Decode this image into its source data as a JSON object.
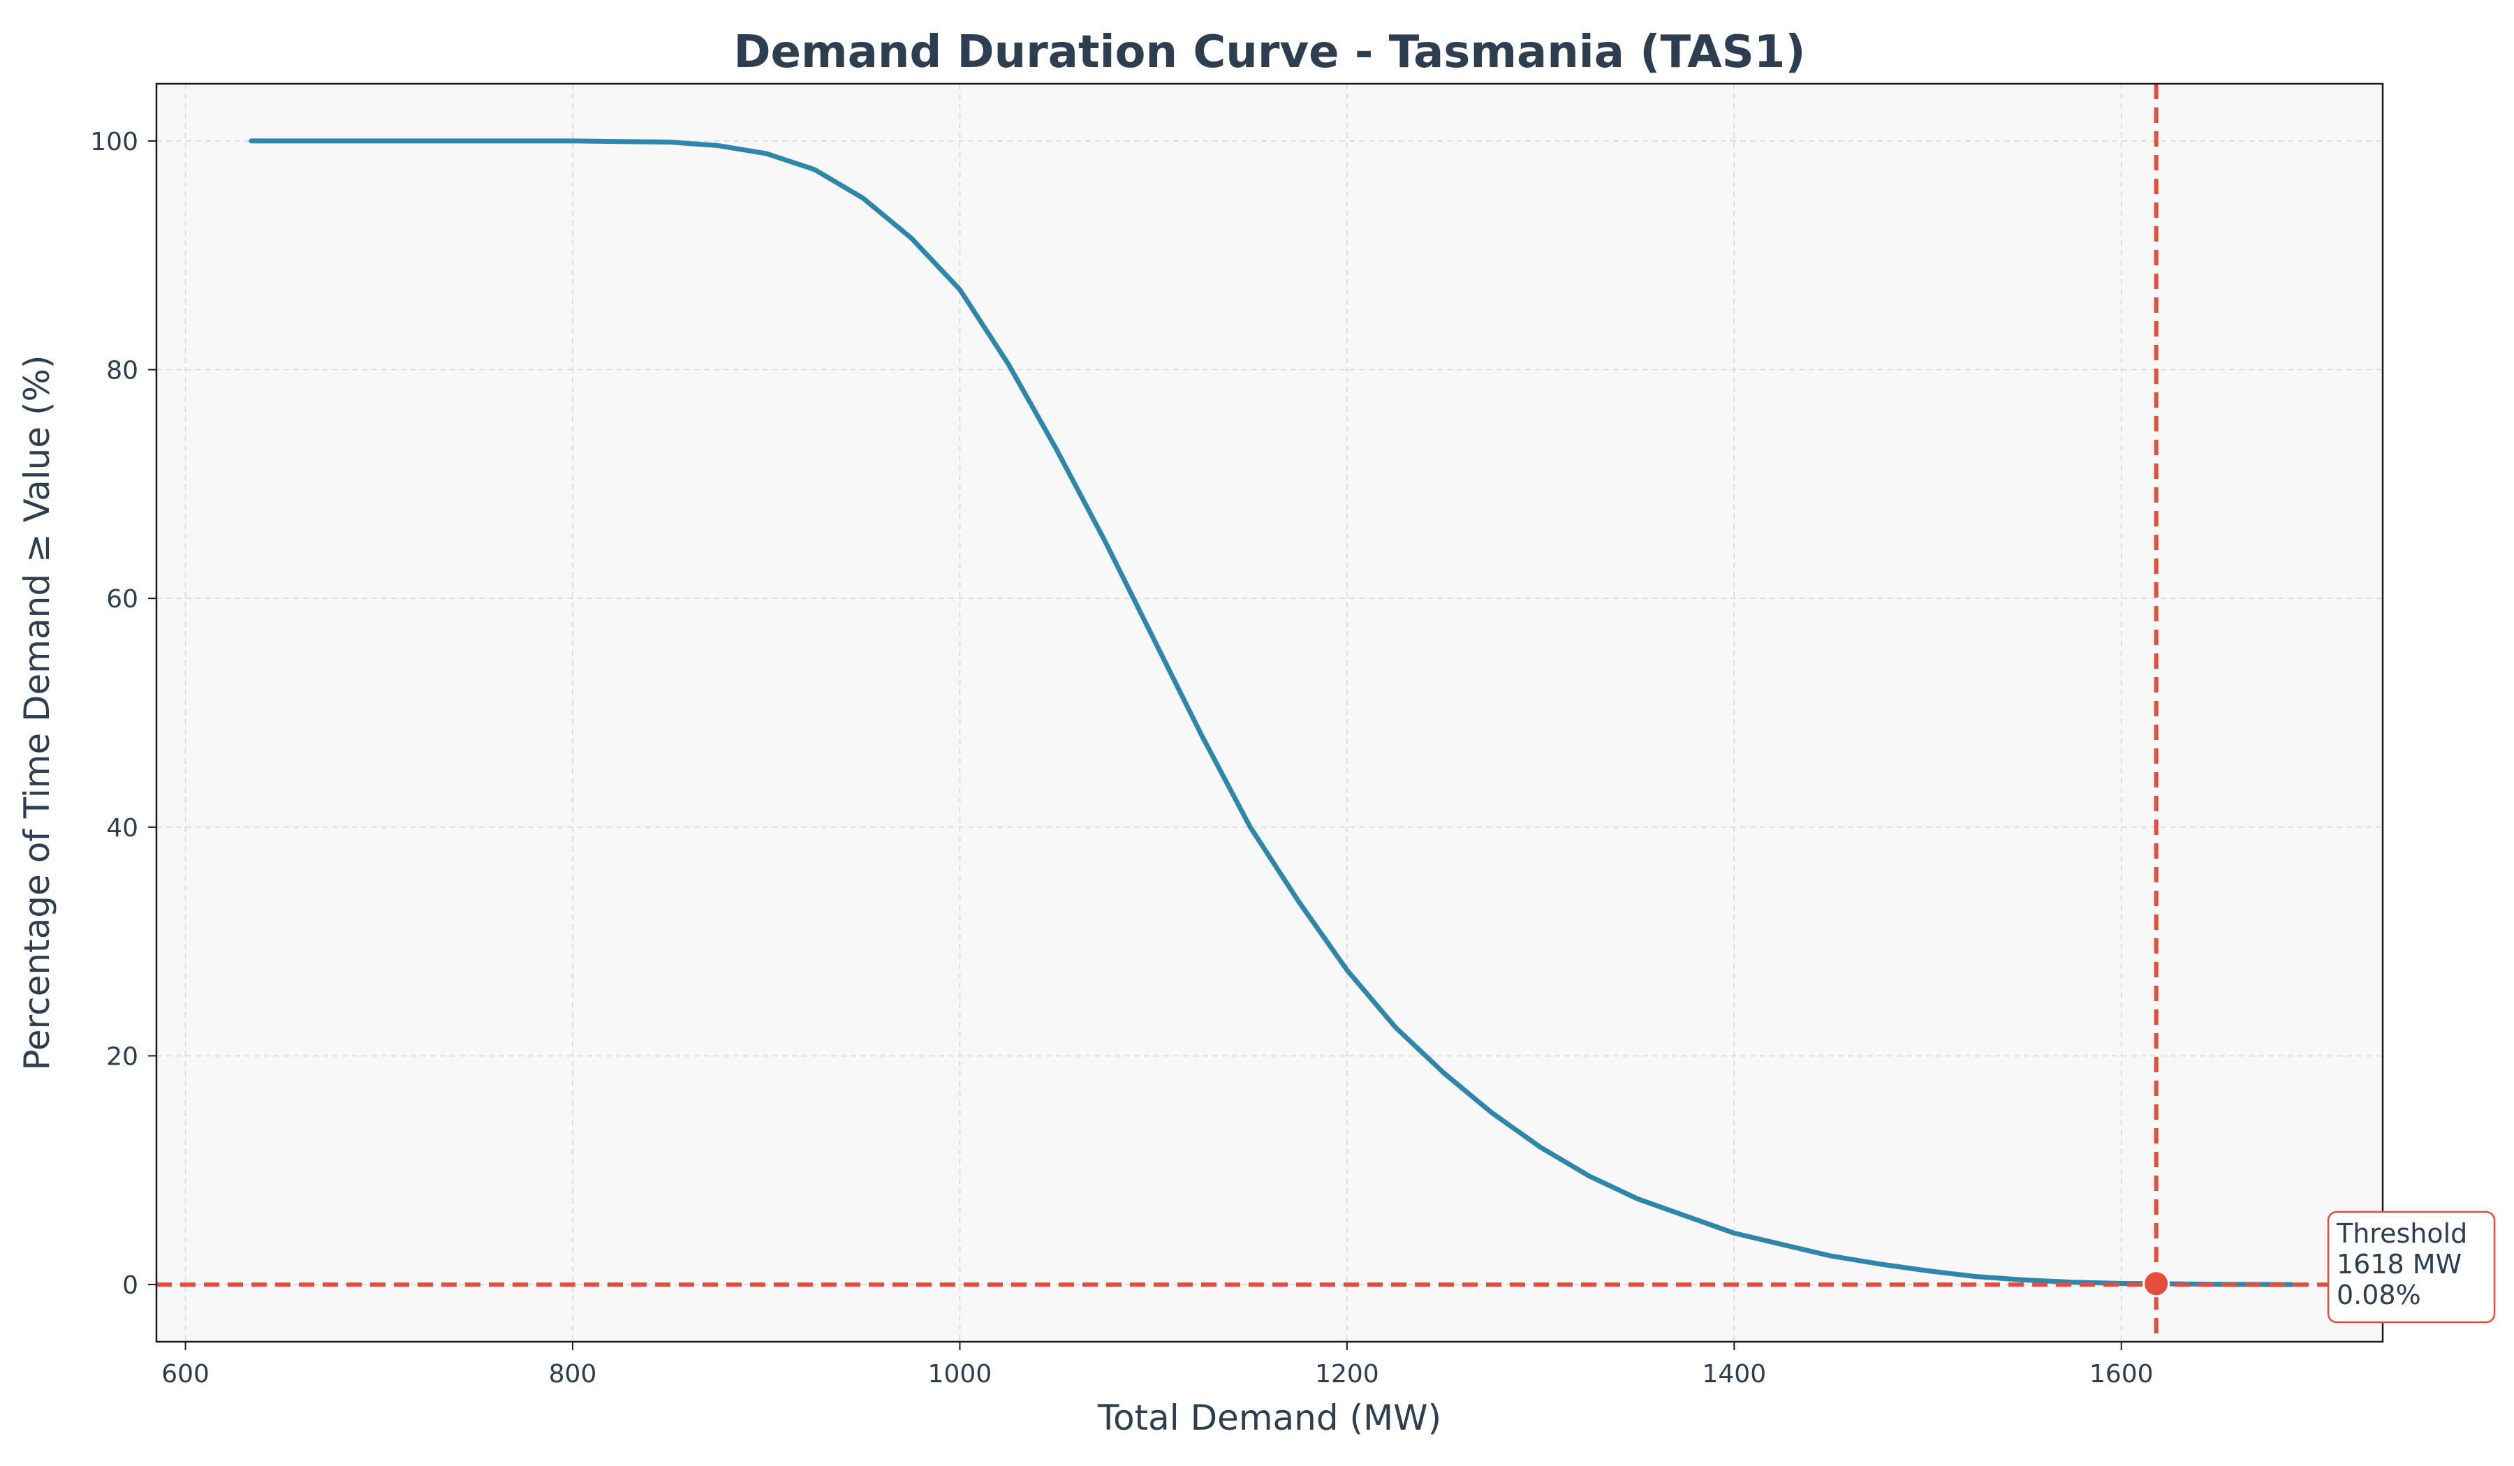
{
  "chart_data": {
    "type": "line",
    "title": "Demand Duration Curve - Tasmania (TAS1)",
    "xlabel": "Total Demand (MW)",
    "ylabel": "Percentage of Time Demand ≥ Value (%)",
    "xlim": [
      585,
      1735
    ],
    "ylim": [
      -5,
      105
    ],
    "xticks": [
      600,
      800,
      1000,
      1200,
      1400,
      1600
    ],
    "yticks": [
      0,
      20,
      40,
      60,
      80,
      100
    ],
    "grid": true,
    "series": [
      {
        "color": "#2e86ab",
        "x": [
          634,
          700,
          800,
          850,
          875,
          900,
          925,
          950,
          975,
          1000,
          1025,
          1050,
          1075,
          1100,
          1125,
          1150,
          1175,
          1200,
          1225,
          1250,
          1275,
          1300,
          1325,
          1350,
          1375,
          1400,
          1425,
          1450,
          1475,
          1500,
          1525,
          1550,
          1575,
          1600,
          1618,
          1650,
          1688
        ],
        "y": [
          100,
          100,
          100,
          99.9,
          99.6,
          98.9,
          97.5,
          95.0,
          91.5,
          87.0,
          80.5,
          73.0,
          65.0,
          56.5,
          48.0,
          40.0,
          33.5,
          27.5,
          22.5,
          18.5,
          15.0,
          12.0,
          9.5,
          7.5,
          6.0,
          4.5,
          3.5,
          2.5,
          1.8,
          1.2,
          0.7,
          0.4,
          0.2,
          0.1,
          0.08,
          0.02,
          0
        ]
      }
    ],
    "threshold": {
      "x": 1618,
      "y": 0.08,
      "hline_y": 0,
      "color": "#e74c3c",
      "label_lines": [
        "Threshold",
        "1618 MW",
        "0.08%"
      ]
    }
  }
}
